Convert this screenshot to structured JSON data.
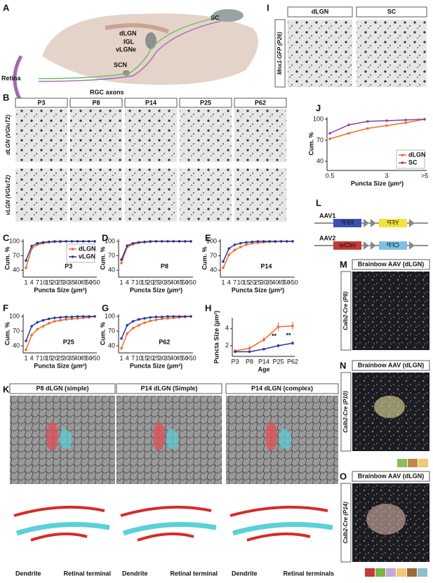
{
  "panels": {
    "letters": [
      "A",
      "B",
      "C",
      "D",
      "E",
      "F",
      "G",
      "H",
      "I",
      "J",
      "K",
      "L",
      "M",
      "N",
      "O"
    ],
    "a": {
      "sc": "SC",
      "dlgn": "dLGN",
      "igl": "IGL",
      "vlgne": "vLGNe",
      "retina": "Retina",
      "scn": "SCN",
      "axons": "RGC axons"
    },
    "b": {
      "columns": [
        "P3",
        "P8",
        "P14",
        "P25",
        "P62"
      ],
      "rows": [
        "dLGN (VGluT2)",
        "vLGN (VGluT2)"
      ]
    },
    "i": {
      "columns": [
        "dLGN",
        "SC"
      ],
      "row": "Mnx1-GFP (P26)"
    },
    "l": {
      "aav1": "AAV1",
      "aav2": "AAV2",
      "rfp": "RFP",
      "yfp": "YFP",
      "mche": "mChe",
      "cfp": "CFP"
    },
    "m": {
      "header": "Brainbow AAV (dLGN)",
      "row": "Calb2-Cre (P8)"
    },
    "n": {
      "header": "Brainbow AAV (dLGN)",
      "row": "Calb2-Cre (P10)"
    },
    "o": {
      "header": "Brainbow AAV (dLGN)",
      "row": "Calb2-Cre (P14)"
    },
    "k": {
      "headers": [
        "P8 dLGN (simple)",
        "P14 dLGN (Simple)",
        "P14 dLGN  (complex)"
      ],
      "dendrite": [
        "Dendrite",
        "Dendrite",
        "Dendrite"
      ],
      "terminal": [
        "Retinal terminal",
        "Retinal terminal",
        "Retinal terminals"
      ]
    }
  },
  "chart_data": [
    {
      "type": "line",
      "title": "P3",
      "xlabel": "Puncta Size (µm²)",
      "ylabel": "Cum. %",
      "legend": "upper right",
      "categories": [
        "1",
        "4",
        "7",
        "10",
        "15",
        "20",
        "25",
        "30",
        "35",
        "40",
        "45",
        "50",
        ">50"
      ],
      "series": [
        {
          "name": "dLGN",
          "color": "#f06a2a",
          "values": [
            45,
            85,
            93,
            96,
            98,
            99,
            99,
            100,
            100,
            100,
            100,
            100,
            100
          ]
        },
        {
          "name": "vLGN",
          "color": "#27399c",
          "values": [
            60,
            90,
            96,
            98,
            99,
            100,
            100,
            100,
            100,
            100,
            100,
            100,
            100
          ]
        }
      ],
      "ylim": [
        30,
        100
      ],
      "yticks": [
        40,
        70,
        100
      ]
    },
    {
      "type": "line",
      "title": "P8",
      "xlabel": "Puncta Size (µm²)",
      "ylabel": "Cum. %",
      "categories": [
        "1",
        "4",
        "7",
        "10",
        "15",
        "20",
        "25",
        "30",
        "35",
        "40",
        "45",
        "50",
        ">50"
      ],
      "series": [
        {
          "name": "dLGN",
          "color": "#f06a2a",
          "values": [
            55,
            88,
            94,
            97,
            98,
            99,
            100,
            100,
            100,
            100,
            100,
            100,
            100
          ]
        },
        {
          "name": "vLGN",
          "color": "#27399c",
          "values": [
            62,
            91,
            96,
            98,
            99,
            100,
            100,
            100,
            100,
            100,
            100,
            100,
            100
          ]
        }
      ],
      "ylim": [
        30,
        100
      ],
      "yticks": [
        40,
        70,
        100
      ]
    },
    {
      "type": "line",
      "title": "P14",
      "xlabel": "Puncta Size (µm²)",
      "ylabel": "Cum. %",
      "categories": [
        "1",
        "4",
        "7",
        "10",
        "15",
        "20",
        "25",
        "30",
        "35",
        "40",
        "45",
        "50",
        ">50"
      ],
      "series": [
        {
          "name": "dLGN",
          "color": "#f06a2a",
          "values": [
            45,
            72,
            82,
            88,
            93,
            96,
            97,
            98,
            99,
            99,
            100,
            100,
            100
          ]
        },
        {
          "name": "vLGN",
          "color": "#27399c",
          "values": [
            58,
            85,
            93,
            96,
            98,
            99,
            100,
            100,
            100,
            100,
            100,
            100,
            100
          ]
        }
      ],
      "ylim": [
        30,
        100
      ],
      "yticks": [
        40,
        70,
        100
      ]
    },
    {
      "type": "line",
      "title": "P25",
      "xlabel": "Puncta Size (µm²)",
      "ylabel": "Cum. %",
      "categories": [
        "1",
        "4",
        "7",
        "10",
        "15",
        "20",
        "25",
        "30",
        "35",
        "40",
        "45",
        "50",
        ">50"
      ],
      "series": [
        {
          "name": "dLGN",
          "color": "#f06a2a",
          "values": [
            32,
            62,
            74,
            80,
            86,
            90,
            92,
            94,
            95,
            96,
            97,
            98,
            100
          ]
        },
        {
          "name": "vLGN",
          "color": "#27399c",
          "values": [
            50,
            80,
            88,
            92,
            95,
            97,
            98,
            99,
            99,
            100,
            100,
            100,
            100
          ]
        }
      ],
      "ylim": [
        30,
        100
      ],
      "yticks": [
        40,
        70,
        100
      ]
    },
    {
      "type": "line",
      "title": "P62",
      "xlabel": "Puncta Size (µm²)",
      "ylabel": "Cum. %",
      "categories": [
        "1",
        "4",
        "7",
        "10",
        "15",
        "20",
        "25",
        "30",
        "35",
        "40",
        "45",
        "50",
        ">50"
      ],
      "series": [
        {
          "name": "dLGN",
          "color": "#f06a2a",
          "values": [
            35,
            65,
            76,
            82,
            87,
            91,
            93,
            95,
            96,
            97,
            98,
            99,
            100
          ]
        },
        {
          "name": "vLGN",
          "color": "#27399c",
          "values": [
            55,
            82,
            90,
            94,
            96,
            98,
            99,
            99,
            100,
            100,
            100,
            100,
            100
          ]
        }
      ],
      "ylim": [
        30,
        100
      ],
      "yticks": [
        40,
        70,
        100
      ]
    },
    {
      "type": "line",
      "xlabel": "Age",
      "ylabel": "Puncta Size (µm²)",
      "categories": [
        "P3",
        "P8",
        "P14",
        "P25",
        "P62"
      ],
      "series": [
        {
          "name": "dLGN",
          "color": "#f06a2a",
          "values": [
            1.4,
            1.7,
            2.7,
            4.2,
            4.3
          ],
          "errors": [
            0.2,
            0.3,
            0.3,
            0.5,
            0.5
          ]
        },
        {
          "name": "vLGN",
          "color": "#27399c",
          "values": [
            1.3,
            1.3,
            1.6,
            2.0,
            2.3
          ],
          "errors": [
            0.1,
            0.1,
            0.1,
            0.2,
            0.2
          ]
        }
      ],
      "annotations": [
        {
          "text": "**",
          "category": "P25"
        },
        {
          "text": "**",
          "category": "P62"
        }
      ],
      "ylim": [
        1,
        5
      ],
      "yticks": [
        2,
        4
      ]
    },
    {
      "type": "line",
      "xlabel": "Puncta Size (µm²)",
      "ylabel": "Cum. %",
      "legend": "lower right",
      "categories": [
        "0.5",
        null,
        null,
        "3",
        null,
        ">5"
      ],
      "series": [
        {
          "name": "dLGN",
          "color": "#f06a2a",
          "values": [
            72,
            80,
            87,
            91,
            95,
            100
          ]
        },
        {
          "name": "SC",
          "color": "#8a3ea0",
          "values": [
            80,
            92,
            97,
            98,
            99,
            100
          ]
        }
      ],
      "ylim": [
        30,
        100
      ],
      "yticks": [
        40,
        70,
        100
      ]
    }
  ]
}
